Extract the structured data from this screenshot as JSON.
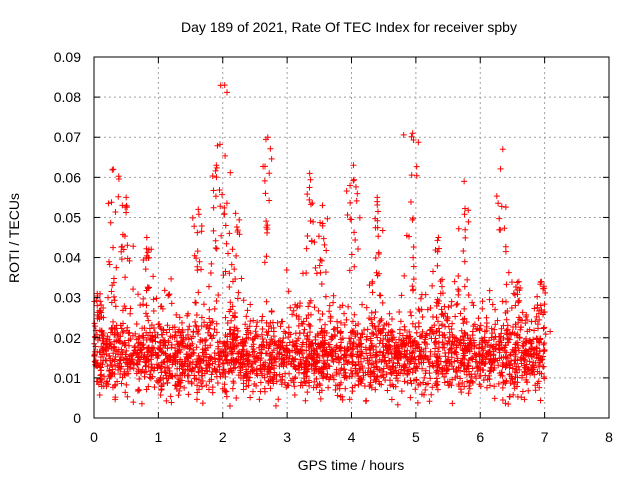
{
  "chart_data": {
    "type": "scatter",
    "title": "Day 189 of 2021, Rate Of TEC Index for receiver spby",
    "xlabel": "GPS time / hours",
    "ylabel": "ROTI / TECUs",
    "xlim": [
      0,
      8
    ],
    "ylim": [
      0,
      0.09
    ],
    "x_ticks": [
      0,
      1,
      2,
      3,
      4,
      5,
      6,
      7,
      8
    ],
    "x_tick_labels": [
      "0",
      "1",
      "2",
      "3",
      "4",
      "5",
      "6",
      "7",
      "8"
    ],
    "y_ticks": [
      0,
      0.01,
      0.02,
      0.03,
      0.04,
      0.05,
      0.06,
      0.07,
      0.08,
      0.09
    ],
    "y_tick_labels": [
      "0",
      "0.01",
      "0.02",
      "0.03",
      "0.04",
      "0.05",
      "0.06",
      "0.07",
      "0.08",
      "0.09"
    ],
    "grid": true,
    "marker": "+",
    "series": [
      {
        "name": "ROTI",
        "color": "#ff0000",
        "x_range": [
          0,
          7
        ],
        "baseline_mean": 0.015,
        "spikes": [
          {
            "x": 0.05,
            "y": 0.031
          },
          {
            "x": 0.3,
            "y": 0.062
          },
          {
            "x": 0.5,
            "y": 0.055
          },
          {
            "x": 0.82,
            "y": 0.045
          },
          {
            "x": 1.62,
            "y": 0.052
          },
          {
            "x": 1.9,
            "y": 0.063
          },
          {
            "x": 2.03,
            "y": 0.083
          },
          {
            "x": 2.2,
            "y": 0.051
          },
          {
            "x": 2.7,
            "y": 0.07
          },
          {
            "x": 3.35,
            "y": 0.061
          },
          {
            "x": 3.55,
            "y": 0.053
          },
          {
            "x": 4.03,
            "y": 0.063
          },
          {
            "x": 4.4,
            "y": 0.055
          },
          {
            "x": 4.95,
            "y": 0.071
          },
          {
            "x": 5.35,
            "y": 0.045
          },
          {
            "x": 5.75,
            "y": 0.059
          },
          {
            "x": 6.35,
            "y": 0.067
          },
          {
            "x": 6.6,
            "y": 0.034
          },
          {
            "x": 6.95,
            "y": 0.034
          }
        ]
      }
    ]
  }
}
